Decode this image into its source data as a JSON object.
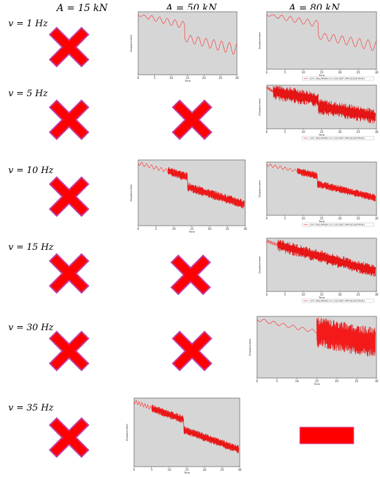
{
  "columns": [
    {
      "var": "A",
      "eq": " = ",
      "val": "15 kN"
    },
    {
      "var": "A",
      "eq": " = ",
      "val": "50 kN"
    },
    {
      "var": "A",
      "eq": " = ",
      "val": "80 kN"
    }
  ],
  "rows": [
    {
      "var": "v",
      "eq": " = ",
      "val": "1 Hz"
    },
    {
      "var": "v",
      "eq": " = ",
      "val": "5 Hz"
    },
    {
      "var": "v",
      "eq": " = ",
      "val": "10 Hz"
    },
    {
      "var": "v",
      "eq": " = ",
      "val": "15 Hz"
    },
    {
      "var": "v",
      "eq": " = ",
      "val": "30 Hz"
    },
    {
      "var": "v",
      "eq": " = ",
      "val": "35 Hz"
    }
  ],
  "plot": {
    "ylabel": "Displacement",
    "xlabel": "Time",
    "xticks": [
      "0",
      "5",
      "10",
      "15",
      "20",
      "25",
      "30"
    ],
    "legend": "U3 PI: DRILLPIPEBH-1 N: 3102 NSET DPFACECONSTRAIN-1"
  },
  "colors": {
    "cross_fill": "#ff0000",
    "cross_stroke": "#b03080",
    "plot_bg": "#d6d6d6",
    "curve": "#ff2020",
    "curve_dark": "#b00000"
  }
}
